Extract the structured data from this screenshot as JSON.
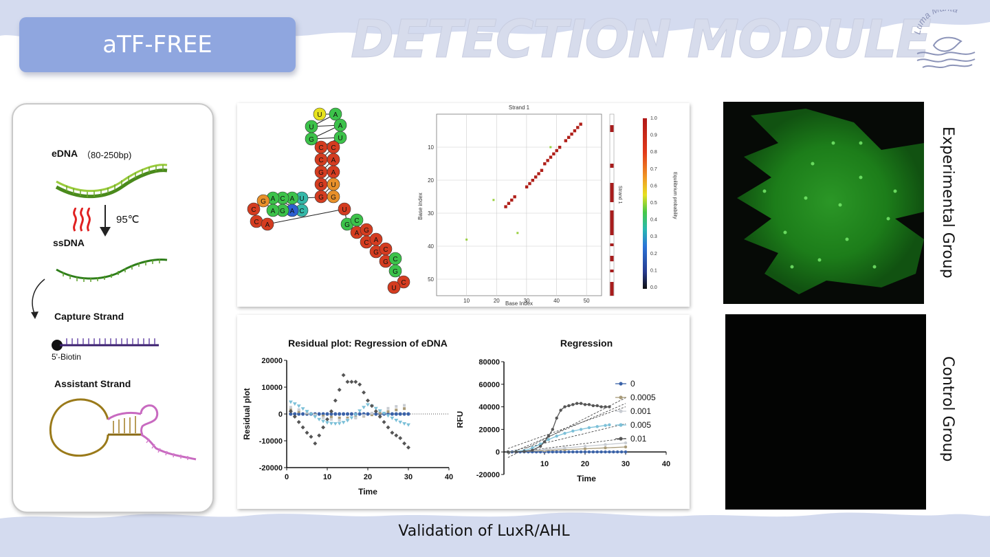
{
  "header": {
    "tag_label": "aTF-FREE",
    "title": "DETECTION MODULE",
    "logo_text": "Luma Manta"
  },
  "schematic": {
    "edna_label": "eDNA",
    "edna_size": "（80-250bp)",
    "temperature": "95℃",
    "ssdna_label": "ssDNA",
    "capture_label": "Capture Strand",
    "biotin_label": "5'-Biotin",
    "assistant_label": "Assistant Strand"
  },
  "structure": {
    "bases": [
      "U",
      "A",
      "U",
      "A",
      "G",
      "U",
      "C",
      "C",
      "C",
      "A",
      "G",
      "A",
      "G",
      "U",
      "G",
      "G",
      "U",
      "A",
      "C",
      "A",
      "C",
      "A",
      "G",
      "A",
      "G",
      "C",
      "C",
      "A",
      "U",
      "G",
      "C",
      "A",
      "G",
      "C",
      "A",
      "G",
      "C",
      "G",
      "C",
      "G",
      "C",
      "U"
    ],
    "colors": {
      "high": "#d43c20",
      "mid": "#e8902a",
      "yellow": "#e6e21c",
      "green": "#3cc24a",
      "teal": "#35b8a8",
      "blue": "#2c5fd0"
    }
  },
  "dotplot": {
    "title": "Strand 1",
    "xlabel": "Base Index",
    "ylabel": "Base index",
    "side_label": "Strand 1",
    "colorbar_label": "Equilibrium probability",
    "x_ticks": [
      "10",
      "20",
      "30",
      "40",
      "50"
    ],
    "y_ticks": [
      "10",
      "20",
      "30",
      "40",
      "50"
    ],
    "colorbar_ticks": [
      "1.0",
      "0.9",
      "0.8",
      "0.7",
      "0.6",
      "0.5",
      "0.4",
      "0.3",
      "0.2",
      "0.1",
      "0.0"
    ]
  },
  "chart_data": [
    {
      "type": "scatter",
      "title": "Residual plot: Regression of eDNA",
      "xlabel": "Time",
      "ylabel": "Residual plot",
      "xlim": [
        0,
        40
      ],
      "ylim": [
        -20000,
        20000
      ],
      "x_ticks": [
        "0",
        "10",
        "20",
        "30",
        "40"
      ],
      "y_ticks": [
        "20000",
        "10000",
        "0",
        "-10000",
        "-20000"
      ],
      "series": [
        {
          "name": "0",
          "x": [
            1,
            2,
            3,
            4,
            5,
            6,
            7,
            8,
            9,
            10,
            11,
            12,
            13,
            14,
            15,
            16,
            17,
            18,
            19,
            20,
            21,
            22,
            23,
            24,
            25,
            26,
            27,
            28,
            29,
            30
          ],
          "y": [
            0,
            0,
            0,
            0,
            0,
            0,
            0,
            0,
            0,
            0,
            0,
            0,
            0,
            0,
            0,
            0,
            0,
            0,
            0,
            0,
            0,
            0,
            0,
            0,
            0,
            0,
            0,
            0,
            0,
            0
          ]
        },
        {
          "name": "0.0005",
          "x": [
            1,
            3,
            5,
            7,
            9,
            11,
            13,
            15,
            17,
            19,
            21,
            23,
            25,
            27,
            29
          ],
          "y": [
            1500,
            900,
            300,
            -300,
            -800,
            -1200,
            -1500,
            -1500,
            -1200,
            -800,
            -300,
            300,
            900,
            1500,
            2000
          ]
        },
        {
          "name": "0.001",
          "x": [
            1,
            3,
            5,
            7,
            9,
            11,
            13,
            15,
            17,
            19,
            21,
            23,
            25,
            27,
            29
          ],
          "y": [
            2500,
            1600,
            600,
            -500,
            -1400,
            -2000,
            -2300,
            -2100,
            -1500,
            -600,
            300,
            1200,
            2100,
            2800,
            3200
          ]
        },
        {
          "name": "0.005",
          "x": [
            1,
            2,
            3,
            4,
            5,
            6,
            7,
            8,
            9,
            10,
            11,
            12,
            13,
            14,
            15,
            16,
            17,
            18,
            19,
            20,
            21,
            22,
            23,
            24,
            25,
            26,
            27,
            28,
            29,
            30
          ],
          "y": [
            4500,
            3800,
            3000,
            2000,
            1000,
            0,
            -1000,
            -2000,
            -2700,
            -3200,
            -3500,
            -3600,
            -3500,
            -3100,
            -2400,
            -1400,
            -200,
            1200,
            2500,
            3500,
            3000,
            2100,
            1200,
            300,
            -600,
            -1500,
            -2300,
            -3000,
            -3600,
            -4000
          ]
        },
        {
          "name": "0.01",
          "x": [
            1,
            2,
            3,
            4,
            5,
            6,
            7,
            8,
            9,
            10,
            11,
            12,
            13,
            14,
            15,
            16,
            17,
            18,
            19,
            20,
            21,
            22,
            23,
            24,
            25,
            26,
            27,
            28,
            29,
            30
          ],
          "y": [
            1000,
            -1000,
            -3000,
            -5000,
            -7000,
            -8500,
            -11000,
            -8000,
            -5000,
            -2000,
            1000,
            5000,
            9000,
            14500,
            12000,
            12000,
            12000,
            11000,
            8000,
            5000,
            3000,
            1000,
            -1000,
            -3000,
            -5000,
            -7000,
            -8000,
            -9000,
            -11000,
            -12500
          ]
        }
      ]
    },
    {
      "type": "line",
      "title": "Regression",
      "xlabel": "Time",
      "ylabel": "RFU",
      "xlim": [
        0,
        40
      ],
      "ylim": [
        -20000,
        80000
      ],
      "x_ticks": [
        "10",
        "20",
        "30",
        "40"
      ],
      "y_ticks": [
        "80000",
        "60000",
        "40000",
        "20000",
        "0",
        "-20000"
      ],
      "legend_position": "top-right",
      "series": [
        {
          "name": "0",
          "color": "#3a62a8",
          "x": [
            1,
            2,
            3,
            4,
            5,
            6,
            7,
            8,
            9,
            10,
            11,
            12,
            13,
            14,
            15,
            16,
            17,
            18,
            19,
            20,
            21,
            22,
            23,
            24,
            25,
            26,
            27,
            28,
            29,
            30
          ],
          "y": [
            0,
            0,
            0,
            0,
            0,
            0,
            0,
            0,
            0,
            0,
            0,
            0,
            0,
            0,
            0,
            0,
            0,
            0,
            0,
            0,
            0,
            0,
            0,
            0,
            0,
            0,
            0,
            0,
            0,
            0
          ]
        },
        {
          "name": "0.0005",
          "color": "#a89a78",
          "x": [
            1,
            5,
            10,
            15,
            20,
            25,
            30
          ],
          "y": [
            0,
            500,
            1200,
            2000,
            2800,
            3600,
            4400
          ]
        },
        {
          "name": "0.001",
          "color": "#c8ccd2",
          "x": [
            1,
            5,
            10,
            15,
            20,
            25,
            30
          ],
          "y": [
            0,
            800,
            2000,
            3500,
            5000,
            6500,
            8000
          ]
        },
        {
          "name": "0.005",
          "color": "#7cc0d8",
          "x": [
            1,
            3,
            5,
            7,
            9,
            11,
            13,
            15,
            17,
            19,
            21,
            23,
            25,
            26
          ],
          "y": [
            0,
            500,
            1200,
            3500,
            7000,
            11000,
            14000,
            16500,
            18500,
            20000,
            21500,
            22500,
            23500,
            24000
          ]
        },
        {
          "name": "0.01",
          "color": "#555555",
          "x": [
            1,
            3,
            5,
            7,
            9,
            10,
            11,
            12,
            13,
            14,
            15,
            16,
            17,
            18,
            19,
            20,
            21,
            22,
            23,
            24,
            25,
            26
          ],
          "y": [
            0,
            200,
            500,
            1500,
            5000,
            9000,
            14000,
            20000,
            30000,
            37000,
            40000,
            41000,
            42000,
            43000,
            43000,
            42000,
            42000,
            41000,
            41000,
            40000,
            40000,
            40000
          ]
        }
      ]
    }
  ],
  "images": {
    "experimental_label": "Experimental Group",
    "control_label": "Control Group"
  },
  "footer": {
    "caption": "Validation of LuxR/AHL"
  }
}
